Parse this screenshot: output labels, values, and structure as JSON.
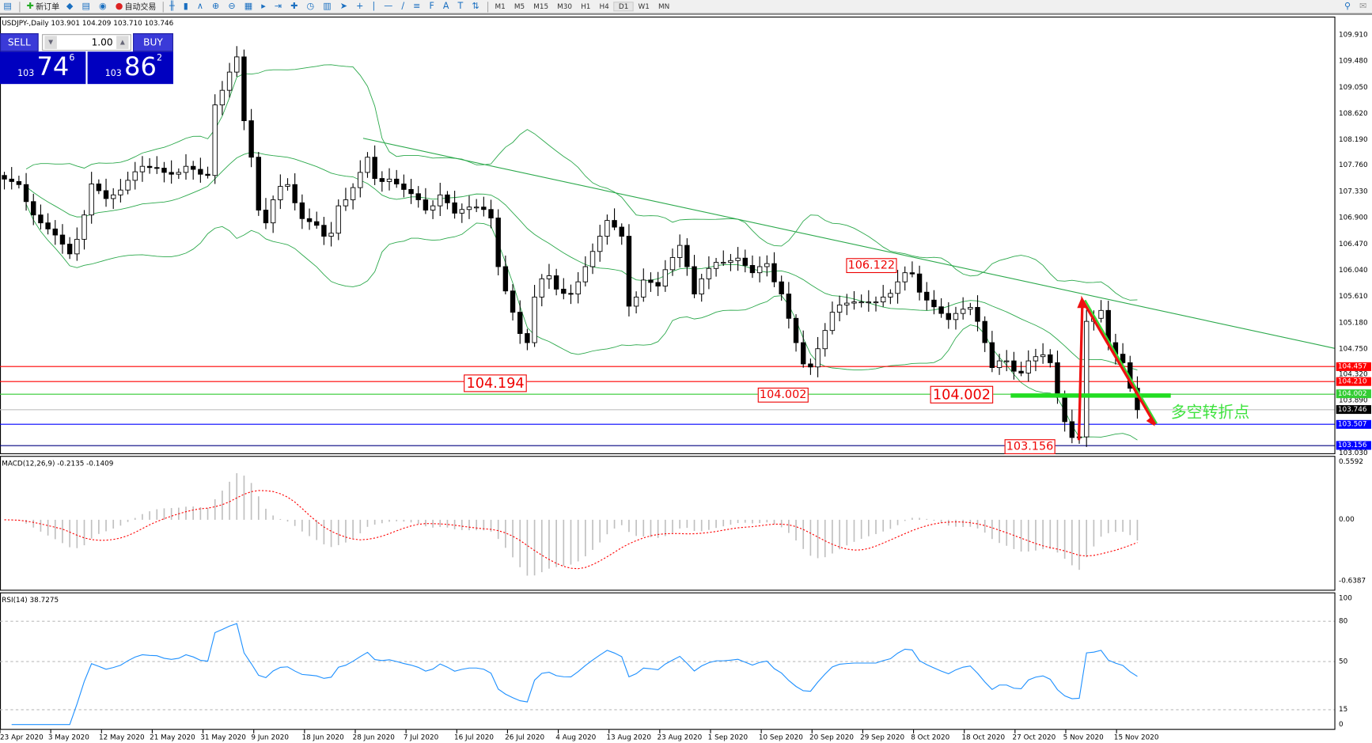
{
  "toolbar": {
    "new_order": "新订单",
    "auto_trading": "自动交易",
    "timeframes": [
      "M1",
      "M5",
      "M15",
      "M30",
      "H1",
      "H4",
      "D1",
      "W1",
      "MN"
    ],
    "active_timeframe": "D1",
    "icons": [
      "new-order-icon",
      "eraser-icon",
      "history-icon",
      "signal-icon",
      "auto-trading-icon",
      "bar-chart-icon",
      "candle-chart-icon",
      "line-chart-icon",
      "zoom-in-icon",
      "zoom-out-icon",
      "tile-icon",
      "autoscroll-icon",
      "chart-shift-icon",
      "indicators-icon",
      "periods-icon",
      "templates-icon",
      "cursor-icon",
      "crosshair-icon",
      "vertical-line-icon",
      "horizontal-line-icon",
      "trendline-icon",
      "channel-icon",
      "fibonacci-icon",
      "text-icon",
      "text-label-icon",
      "arrows-icon",
      "search-icon",
      "chat-icon"
    ]
  },
  "chart": {
    "title": "USDJPY-,Daily  103.901 104.209 103.710 103.746",
    "one_click": {
      "sell": "SELL",
      "buy": "BUY",
      "lot": "1.00",
      "sell_big": "103",
      "sell_main": "74",
      "sell_frac": "6",
      "buy_big": "103",
      "buy_main": "86",
      "buy_frac": "2"
    },
    "price_axis": [
      "109.910",
      "109.480",
      "109.050",
      "108.620",
      "108.190",
      "107.760",
      "107.330",
      "106.900",
      "106.470",
      "106.040",
      "105.610",
      "105.180",
      "104.750",
      "104.320",
      "103.890",
      "103.030"
    ],
    "price_tags": [
      {
        "value": "104.457",
        "color": "#ff0000"
      },
      {
        "value": "104.210",
        "color": "#ff0000"
      },
      {
        "value": "104.002",
        "color": "#33cc33"
      },
      {
        "value": "103.746",
        "color": "#000000"
      },
      {
        "value": "103.507",
        "color": "#0000ff"
      },
      {
        "value": "103.156",
        "color": "#0000ff"
      }
    ],
    "annotations": {
      "l1": "104.194",
      "l2": "104.002",
      "l3": "104.002",
      "l4": "103.156",
      "l5": "106.122",
      "text": "多空转折点"
    },
    "dates": [
      "23 Apr 2020",
      "3 May 2020",
      "12 May 2020",
      "21 May 2020",
      "31 May 2020",
      "9 Jun 2020",
      "18 Jun 2020",
      "28 Jun 2020",
      "7 Jul 2020",
      "16 Jul 2020",
      "26 Jul 2020",
      "4 Aug 2020",
      "13 Aug 2020",
      "23 Aug 2020",
      "1 Sep 2020",
      "10 Sep 2020",
      "20 Sep 2020",
      "29 Sep 2020",
      "8 Oct 2020",
      "18 Oct 2020",
      "27 Oct 2020",
      "5 Nov 2020",
      "15 Nov 2020"
    ]
  },
  "macd": {
    "label": "MACD(12,26,9) -0.2135 -0.1409",
    "axis": [
      "0.5592",
      "0.00",
      "-0.6387"
    ],
    "max": 0.5592,
    "min": -0.6387
  },
  "rsi": {
    "label": "RSI(14) 38.7275",
    "axis": [
      "100",
      "80",
      "50",
      "15",
      "0"
    ]
  },
  "chart_data": {
    "type": "candlestick",
    "symbol": "USDJPY-",
    "timeframe": "Daily",
    "ylim": [
      103.03,
      109.91
    ],
    "colors": {
      "bands": "#2aa84a",
      "macd_signal": "#ff0000",
      "macd_hist": "#c0c0c0",
      "rsi": "#1e90ff",
      "trendline": "#2aa84a"
    },
    "levels": [
      104.457,
      104.21,
      104.002,
      103.746,
      103.507,
      103.156
    ],
    "close": [
      107.54,
      107.5,
      107.45,
      107.17,
      106.95,
      106.82,
      106.72,
      106.62,
      106.47,
      106.31,
      106.55,
      106.95,
      107.46,
      107.35,
      107.22,
      107.28,
      107.36,
      107.52,
      107.66,
      107.75,
      107.73,
      107.72,
      107.65,
      107.62,
      107.65,
      107.75,
      107.7,
      107.62,
      107.6,
      108.76,
      109.0,
      109.3,
      109.55,
      108.5,
      107.9,
      107.03,
      106.82,
      107.2,
      107.42,
      107.45,
      107.15,
      106.89,
      106.84,
      106.78,
      106.6,
      106.65,
      107.1,
      107.2,
      107.4,
      107.65,
      107.9,
      107.55,
      107.5,
      107.54,
      107.46,
      107.37,
      107.3,
      107.2,
      107.03,
      107.1,
      107.28,
      107.15,
      106.98,
      107.04,
      107.08,
      107.08,
      107.04,
      106.9,
      106.1,
      105.7,
      105.35,
      105.0,
      104.85,
      105.6,
      105.9,
      105.95,
      105.73,
      105.66,
      105.65,
      105.85,
      106.1,
      106.35,
      106.6,
      106.86,
      106.75,
      106.6,
      105.45,
      105.6,
      105.88,
      105.84,
      105.78,
      106.05,
      106.25,
      106.45,
      106.1,
      105.65,
      105.9,
      106.07,
      106.17,
      106.17,
      106.2,
      106.24,
      106.12,
      106.0,
      106.1,
      106.15,
      105.85,
      105.65,
      105.25,
      104.85,
      104.5,
      104.45,
      104.75,
      105.05,
      105.35,
      105.47,
      105.5,
      105.52,
      105.52,
      105.52,
      105.52,
      105.6,
      105.66,
      105.85,
      106.0,
      105.98,
      105.68,
      105.55,
      105.44,
      105.33,
      105.23,
      105.33,
      105.4,
      105.43,
      105.2,
      104.85,
      104.44,
      104.55,
      104.55,
      104.38,
      104.35,
      104.55,
      104.62,
      104.65,
      104.52,
      104.0,
      103.55,
      103.29,
      103.3,
      105.2,
      105.25,
      105.38,
      104.85,
      104.66,
      104.52,
      104.1,
      103.746
    ]
  }
}
